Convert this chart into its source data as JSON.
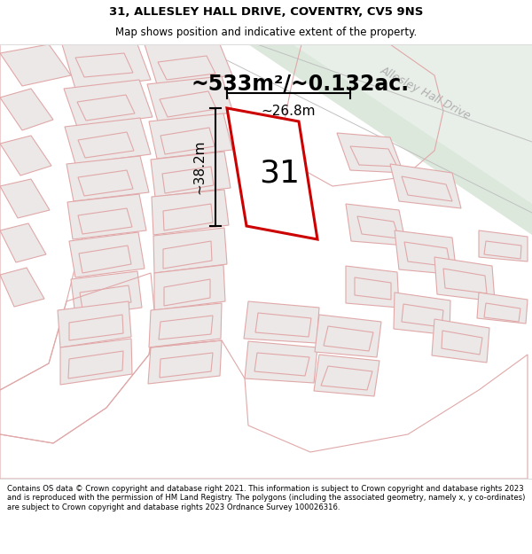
{
  "title_line1": "31, ALLESLEY HALL DRIVE, COVENTRY, CV5 9NS",
  "title_line2": "Map shows position and indicative extent of the property.",
  "area_text": "~533m²/~0.132ac.",
  "number_label": "31",
  "dim_height": "~38.2m",
  "dim_width": "~26.8m",
  "road_label": "Allesley Hall Drive",
  "footer_text": "Contains OS data © Crown copyright and database right 2021. This information is subject to Crown copyright and database rights 2023 and is reproduced with the permission of HM Land Registry. The polygons (including the associated geometry, namely x, y co-ordinates) are subject to Crown copyright and database rights 2023 Ordnance Survey 100026316.",
  "bg_map_color": "#f5f4f2",
  "road_fill": "#dde8dd",
  "road_edge": "#c8c8c8",
  "plot_fill": "#ffffff",
  "plot_edge": "#cc0000",
  "parcel_fill": "#ede8e8",
  "parcel_edge": "#e0a8a8",
  "title_fontsize": 9.5,
  "subtitle_fontsize": 8.5,
  "area_fontsize": 17,
  "number_fontsize": 26,
  "dim_fontsize": 11,
  "road_fontsize": 9,
  "footer_fontsize": 6.1
}
